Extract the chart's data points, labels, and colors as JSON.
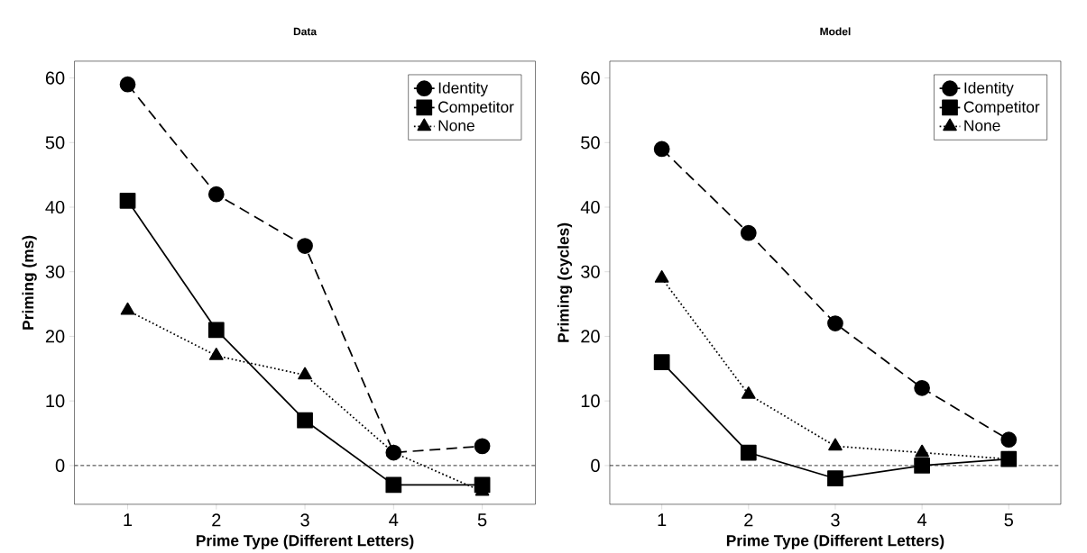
{
  "chart_data": [
    {
      "type": "line",
      "title": "Data",
      "xlabel": "Prime Type (Different Letters)",
      "ylabel": "Priming (ms)",
      "x": [
        1,
        2,
        3,
        4,
        5
      ],
      "xlim": [
        0.4,
        5.6
      ],
      "xticks": [
        1,
        2,
        3,
        4,
        5
      ],
      "ylim": [
        -6,
        62.6
      ],
      "yticks": [
        0,
        10,
        20,
        30,
        40,
        50,
        60
      ],
      "legend": "top right",
      "grid": false,
      "ref_lines": [
        {
          "axis": "y",
          "value": 0,
          "line_style": "dashed"
        }
      ],
      "series": [
        {
          "name": "Identity",
          "color": "#000000",
          "marker": "circle",
          "line_style": "dashed",
          "values": [
            59,
            42,
            34,
            2,
            3
          ]
        },
        {
          "name": "Competitor",
          "color": "#000000",
          "marker": "square",
          "line_style": "solid",
          "values": [
            41,
            21,
            7,
            -3,
            -3
          ]
        },
        {
          "name": "None",
          "color": "#000000",
          "marker": "triangle",
          "line_style": "dotted",
          "values": [
            24,
            17,
            14,
            2,
            -4
          ]
        }
      ]
    },
    {
      "type": "line",
      "title": "Model",
      "xlabel": "Prime Type (Different Letters)",
      "ylabel": "Priming (cycles)",
      "x": [
        1,
        2,
        3,
        4,
        5
      ],
      "xlim": [
        0.4,
        5.6
      ],
      "xticks": [
        1,
        2,
        3,
        4,
        5
      ],
      "ylim": [
        -6,
        62.6
      ],
      "yticks": [
        0,
        10,
        20,
        30,
        40,
        50,
        60
      ],
      "legend": "top right",
      "grid": false,
      "ref_lines": [
        {
          "axis": "y",
          "value": 0,
          "line_style": "dashed"
        }
      ],
      "series": [
        {
          "name": "Identity",
          "color": "#000000",
          "marker": "circle",
          "line_style": "dashed",
          "values": [
            49,
            36,
            22,
            12,
            4
          ]
        },
        {
          "name": "Competitor",
          "color": "#000000",
          "marker": "square",
          "line_style": "solid",
          "values": [
            16,
            2,
            -2,
            0,
            1
          ]
        },
        {
          "name": "None",
          "color": "#000000",
          "marker": "triangle",
          "line_style": "dotted",
          "values": [
            29,
            11,
            3,
            2,
            1
          ]
        }
      ]
    }
  ]
}
